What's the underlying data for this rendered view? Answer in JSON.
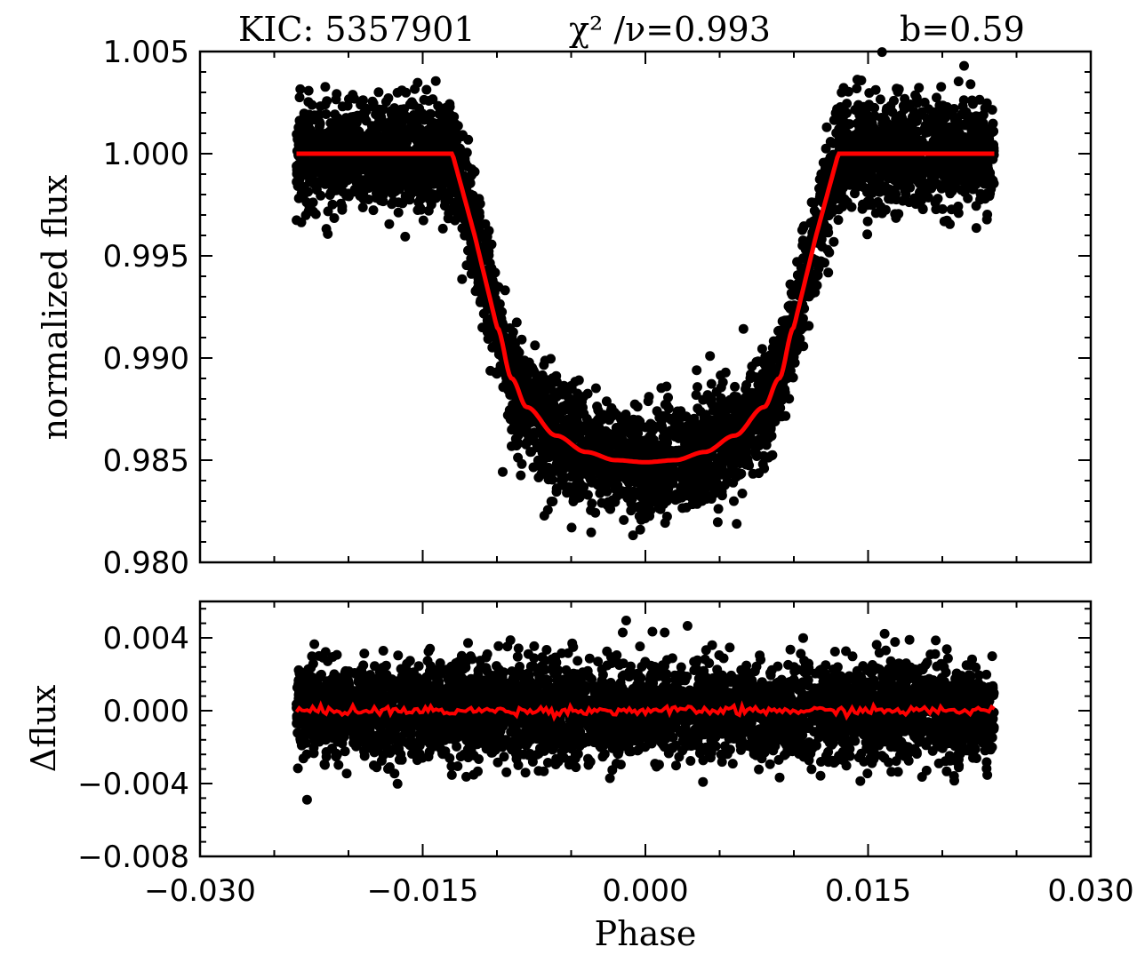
{
  "chart_data": [
    {
      "type": "scatter",
      "panel": "top",
      "title_parts": [
        "KIC:  5357901",
        "χ² /ν=0.993",
        "b=0.59"
      ],
      "ylabel": "normalized  flux",
      "xlabel": "",
      "xlim": [
        -0.03,
        0.03
      ],
      "ylim": [
        0.98,
        1.005
      ],
      "yticks": [
        1.005,
        1.0,
        0.995,
        0.99,
        0.985,
        0.98
      ],
      "ytick_labels": [
        "1.005",
        "1.000",
        "0.995",
        "0.990",
        "0.985",
        "0.980"
      ],
      "xticks": [
        -0.03,
        -0.015,
        0.0,
        0.015,
        0.03
      ],
      "grid": false,
      "series": [
        {
          "kind": "points",
          "color": "#000000",
          "phase_range": [
            -0.0235,
            0.0235
          ],
          "scatter_sigma": 0.0013
        },
        {
          "kind": "model",
          "color": "#ff0000",
          "x": [
            -0.0235,
            -0.013,
            -0.0115,
            -0.01,
            -0.009,
            -0.008,
            -0.006,
            -0.004,
            -0.002,
            0.0,
            0.002,
            0.004,
            0.006,
            0.008,
            0.009,
            0.01,
            0.0115,
            0.013,
            0.0235
          ],
          "y": [
            1.0,
            1.0,
            0.996,
            0.9915,
            0.989,
            0.9876,
            0.9862,
            0.9854,
            0.985,
            0.9849,
            0.985,
            0.9854,
            0.9862,
            0.9876,
            0.989,
            0.9915,
            0.996,
            1.0,
            1.0
          ]
        }
      ]
    },
    {
      "type": "scatter",
      "panel": "bottom",
      "ylabel": "Δflux",
      "xlabel": "Phase",
      "xlim": [
        -0.03,
        0.03
      ],
      "ylim": [
        -0.008,
        0.006
      ],
      "yticks": [
        0.004,
        0.0,
        -0.004,
        -0.008
      ],
      "ytick_labels": [
        "0.004",
        "0.000",
        "−0.004",
        "−0.008"
      ],
      "xticks": [
        -0.03,
        -0.015,
        0.0,
        0.015,
        0.03
      ],
      "xtick_labels": [
        "−0.030",
        "−0.015",
        "0.000",
        "0.015",
        "0.030"
      ],
      "grid": false,
      "series": [
        {
          "kind": "residual-points",
          "color": "#000000",
          "phase_range": [
            -0.0235,
            0.0235
          ],
          "scatter_sigma": 0.0013
        },
        {
          "kind": "binned-residual",
          "color": "#ff0000",
          "phase_range": [
            -0.0235,
            0.0235
          ],
          "level": 0.0
        }
      ]
    }
  ]
}
